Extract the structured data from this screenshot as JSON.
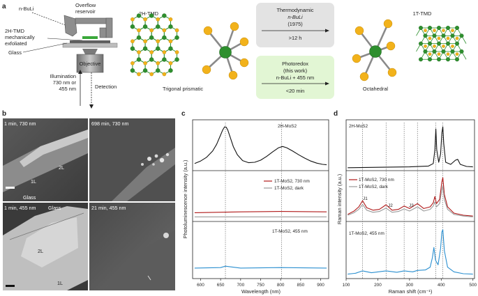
{
  "panel_a": {
    "label": "a",
    "setup": {
      "nbuli": "n-BuLi",
      "reservoir": [
        "Overflow",
        "reservoir"
      ],
      "tmd": [
        "2H-TMD",
        "mechanically",
        "exfoliated"
      ],
      "glass": "Glass",
      "objective": "Objective",
      "illumination": [
        "Illumination",
        "730 nm or",
        "455 nm"
      ],
      "detection": "Detection"
    },
    "left_title": "2H-TMD",
    "left_caption": "Trigonal prismatic",
    "right_title": "1T-TMD",
    "right_caption": "Octahedral",
    "thermo_box": {
      "title": "Thermodynamic",
      "line2": "n-BuLi",
      "line3": "(1975)",
      "time": ">12 h",
      "fill": "#e3e3e3"
    },
    "photo_box": {
      "title": "Photoredox",
      "line2": "(this work)",
      "line3": "n-BuLi + 455 nm",
      "time": "<20 min",
      "fill": "#e2f6d4"
    },
    "colors": {
      "metal": "#2e8f2e",
      "chalcogen": "#f2b21b"
    }
  },
  "panel_b": {
    "label": "b",
    "images": [
      {
        "caption": "1 min, 730 nm",
        "labels": [
          "2L",
          "1L",
          "Glass"
        ]
      },
      {
        "caption": "698 min, 730 nm",
        "labels": []
      },
      {
        "caption": "1 min, 455 nm",
        "labels": [
          "Glass",
          "2L",
          "1L"
        ]
      },
      {
        "caption": "21 min, 455 nm",
        "labels": []
      }
    ]
  },
  "panel_c": {
    "label": "c",
    "chart_data": {
      "type": "line",
      "ylabel": "Photoluminescence intensity (a.u.)",
      "xlabel": "Wavelength (nm)",
      "xlim": [
        580,
        920
      ],
      "xticks": [
        600,
        650,
        700,
        750,
        800,
        850,
        900
      ],
      "tick_labels": [
        "600",
        "650",
        "700",
        "750",
        "800",
        "850",
        "900"
      ],
      "reference_lines": [
        662,
        802
      ],
      "panes": [
        {
          "label": "2H-MoS2",
          "series": [
            {
              "name": "2H-MoS2",
              "color": "#111111",
              "x": [
                585,
                600,
                615,
                630,
                640,
                648,
                655,
                660,
                664,
                668,
                674,
                682,
                692,
                705,
                720,
                735,
                750,
                765,
                780,
                795,
                805,
                815,
                830,
                845,
                860,
                875,
                890,
                905,
                915
              ],
              "y": [
                0.12,
                0.18,
                0.27,
                0.42,
                0.58,
                0.76,
                0.92,
                1.0,
                0.99,
                0.92,
                0.75,
                0.52,
                0.33,
                0.19,
                0.14,
                0.15,
                0.2,
                0.29,
                0.4,
                0.5,
                0.53,
                0.5,
                0.42,
                0.33,
                0.25,
                0.18,
                0.13,
                0.1,
                0.09
              ]
            }
          ]
        },
        {
          "label": "",
          "series": [
            {
              "name": "1T-MoS2, 730 nm",
              "color": "#b01818",
              "x": [
                585,
                700,
                800,
                915
              ],
              "y": [
                0.16,
                0.18,
                0.19,
                0.18
              ]
            },
            {
              "name": "1T-MoS2, dark",
              "color": "#9a9a9a",
              "x": [
                585,
                700,
                800,
                915
              ],
              "y": [
                0.06,
                0.06,
                0.06,
                0.06
              ]
            }
          ]
        },
        {
          "label": "1T-MoS2, 455 nm",
          "series": [
            {
              "name": "1T-MoS2, 455 nm",
              "color": "#2a8fd0",
              "x": [
                585,
                650,
                662,
                700,
                800,
                915
              ],
              "y": [
                0.18,
                0.19,
                0.22,
                0.18,
                0.19,
                0.18
              ]
            }
          ]
        }
      ]
    }
  },
  "panel_d": {
    "label": "d",
    "chart_data": {
      "type": "line",
      "ylabel": "Raman intensity (a.u.)",
      "xlabel": "Raman shift (cm⁻¹)",
      "xlim": [
        100,
        505
      ],
      "xticks": [
        100,
        200,
        300,
        400,
        500
      ],
      "tick_labels": [
        "100",
        "200",
        "300",
        "400",
        "500"
      ],
      "reference_lines": [
        152,
        226,
        283,
        325,
        383,
        405
      ],
      "annotations": [
        "J1",
        "J2",
        "J3"
      ],
      "panes": [
        {
          "label": "2H-MoS2",
          "series": [
            {
              "name": "2H-MoS2",
              "color": "#111111",
              "x": [
                105,
                200,
                300,
                360,
                375,
                380,
                383,
                386,
                392,
                398,
                402,
                405,
                408,
                414,
                430,
                445,
                452,
                460,
                480,
                500
              ],
              "y": [
                0.02,
                0.03,
                0.04,
                0.06,
                0.12,
                0.45,
                0.95,
                0.45,
                0.15,
                0.35,
                0.85,
                1.0,
                0.6,
                0.15,
                0.1,
                0.2,
                0.22,
                0.1,
                0.05,
                0.04
              ]
            }
          ]
        },
        {
          "label": "",
          "series": [
            {
              "name": "1T-MoS2, 730 nm",
              "color": "#b01818",
              "x": [
                105,
                125,
                140,
                152,
                165,
                185,
                205,
                226,
                245,
                265,
                283,
                300,
                325,
                345,
                365,
                375,
                380,
                385,
                395,
                402,
                405,
                410,
                420,
                440,
                470,
                500
              ],
              "y": [
                0.12,
                0.2,
                0.3,
                0.45,
                0.28,
                0.22,
                0.24,
                0.35,
                0.22,
                0.24,
                0.32,
                0.26,
                0.38,
                0.26,
                0.3,
                0.4,
                0.55,
                0.38,
                0.48,
                0.9,
                1.0,
                0.6,
                0.3,
                0.15,
                0.1,
                0.08
              ]
            },
            {
              "name": "1T-MoS2, dark",
              "color": "#9a9a9a",
              "x": [
                105,
                125,
                140,
                152,
                165,
                185,
                205,
                226,
                245,
                265,
                283,
                300,
                325,
                345,
                365,
                375,
                380,
                385,
                395,
                402,
                405,
                410,
                420,
                440,
                470,
                500
              ],
              "y": [
                0.1,
                0.16,
                0.24,
                0.36,
                0.22,
                0.17,
                0.19,
                0.27,
                0.17,
                0.19,
                0.25,
                0.2,
                0.3,
                0.2,
                0.24,
                0.32,
                0.42,
                0.3,
                0.38,
                0.72,
                0.8,
                0.48,
                0.24,
                0.12,
                0.08,
                0.06
              ]
            }
          ]
        },
        {
          "label": "1T-MoS2, 455 nm",
          "series": [
            {
              "name": "1T-MoS2, 455 nm",
              "color": "#2a8fd0",
              "x": [
                105,
                130,
                152,
                180,
                226,
                260,
                283,
                310,
                325,
                350,
                365,
                372,
                377,
                382,
                390,
                398,
                402,
                405,
                410,
                420,
                440,
                470,
                500
              ],
              "y": [
                0.05,
                0.07,
                0.12,
                0.08,
                0.12,
                0.09,
                0.12,
                0.1,
                0.13,
                0.14,
                0.2,
                0.4,
                0.62,
                0.35,
                0.25,
                0.6,
                0.95,
                1.0,
                0.55,
                0.2,
                0.1,
                0.06,
                0.05
              ]
            }
          ]
        }
      ]
    }
  }
}
